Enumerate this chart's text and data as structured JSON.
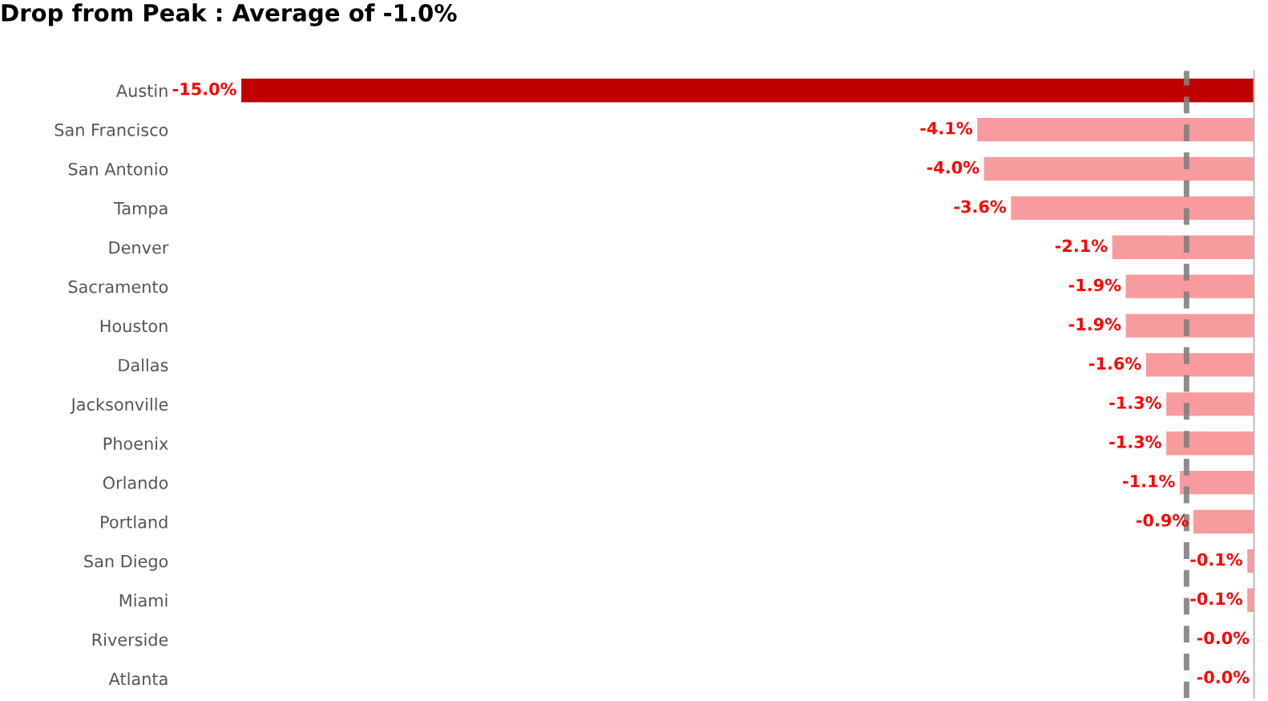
{
  "chart_data": {
    "type": "bar",
    "orientation": "horizontal",
    "title": "Drop from Peak : Average of -1.0%",
    "categories": [
      "Austin",
      "San Francisco",
      "San Antonio",
      "Tampa",
      "Denver",
      "Sacramento",
      "Houston",
      "Dallas",
      "Jacksonville",
      "Phoenix",
      "Orlando",
      "Portland",
      "San Diego",
      "Miami",
      "Riverside",
      "Atlanta"
    ],
    "values": [
      -15.0,
      -4.1,
      -4.0,
      -3.6,
      -2.1,
      -1.9,
      -1.9,
      -1.6,
      -1.3,
      -1.3,
      -1.1,
      -0.9,
      -0.1,
      -0.1,
      -0.0,
      -0.0
    ],
    "value_labels": [
      "-15.0%",
      "-4.1%",
      "-4.0%",
      "-3.6%",
      "-2.1%",
      "-1.9%",
      "-1.9%",
      "-1.6%",
      "-1.3%",
      "-1.3%",
      "-1.1%",
      "-0.9%",
      "-0.1%",
      "-0.1%",
      "-0.0%",
      "-0.0%"
    ],
    "colors": [
      "#c00000",
      "#f89b9e",
      "#f89b9e",
      "#f89b9e",
      "#f89b9e",
      "#f89b9e",
      "#f89b9e",
      "#f89b9e",
      "#f89b9e",
      "#f89b9e",
      "#f89b9e",
      "#f89b9e",
      "#f89b9e",
      "#f89b9e",
      "#f89b9e",
      "#f89b9e"
    ],
    "ref_lines": [
      {
        "axis": "x",
        "value": -1.0,
        "color": "#7f7f7f",
        "line_style": "dashed"
      }
    ]
  }
}
